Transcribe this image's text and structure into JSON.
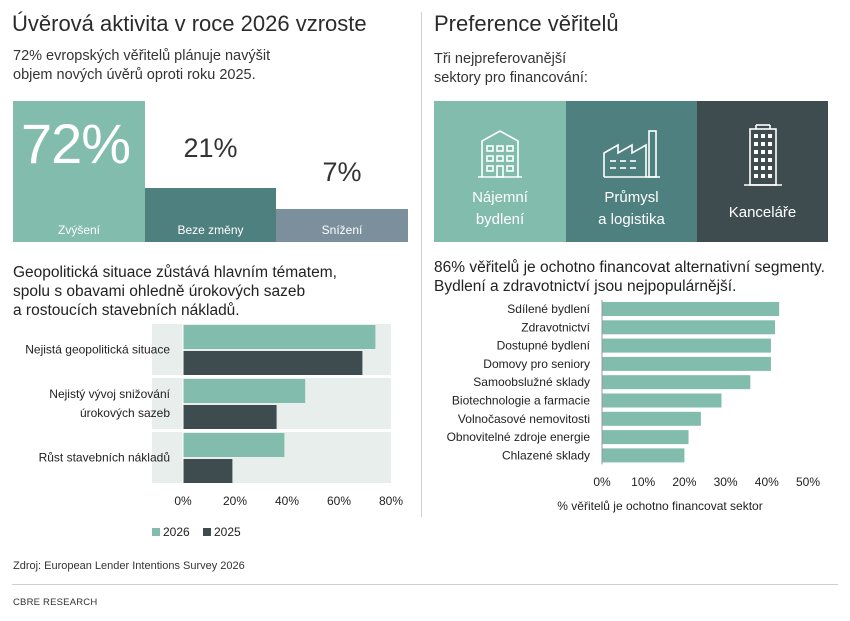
{
  "left": {
    "title": "Úvěrová aktivita v roce 2026 vzroste",
    "subtitle_line1": "72% evropských věřitelů plánuje navýšit",
    "subtitle_line2": "objem nových úvěrů oproti roku 2025.",
    "blocks": [
      {
        "value": "72%",
        "label": "Zvýšení",
        "color": "#82bcac"
      },
      {
        "value": "21%",
        "label": "Beze změny",
        "color": "#4f8080"
      },
      {
        "value": "7%",
        "label": "Snížení",
        "color": "#7c8f9c"
      }
    ],
    "section2_line1": "Geopolitická situace zůstává hlavním tématem,",
    "section2_line2": "spolu s obavami ohledně úrokových sazeb",
    "section2_line3": "a rostoucích stavebních nákladů."
  },
  "right": {
    "title": "Preference věřitelů",
    "subtitle_line1": "Tři nejpreferovanější",
    "subtitle_line2": "sektory pro financování:",
    "tiles": [
      {
        "line1": "Nájemní",
        "line2": "bydlení",
        "icon": "apartment-building-icon",
        "color": "#82bcac"
      },
      {
        "line1": "Průmysl",
        "line2": "a logistika",
        "icon": "factory-icon",
        "color": "#4f8080"
      },
      {
        "line1": "Kanceláře",
        "line2": "",
        "icon": "office-tower-icon",
        "color": "#3f4c4f"
      }
    ],
    "section2_line1": "86% věřitelů je ochotno financovat alternativní segmenty.",
    "section2_line2": "Bydlení a zdravotnictví jsou nejpopulárnější."
  },
  "footer": {
    "source": "Zdroj: European Lender Intentions Survey 2026",
    "brand": "CBRE RESEARCH"
  },
  "chart_data": [
    {
      "type": "bar",
      "orientation": "horizontal",
      "categories": [
        [
          "Nejistá geopolitická situace"
        ],
        [
          "Nejistý vývoj snižování",
          "úrokových sazeb"
        ],
        [
          "Růst stavebních nákladů"
        ]
      ],
      "series": [
        {
          "name": "2026",
          "values": [
            74,
            47,
            39
          ],
          "color": "#82bcac"
        },
        {
          "name": "2025",
          "values": [
            69,
            36,
            19
          ],
          "color": "#3f4c4f"
        }
      ],
      "xlim": [
        0,
        80
      ],
      "xticks": [
        0,
        20,
        40,
        60,
        80
      ],
      "tick_suffix": "%",
      "legend": "bottom",
      "grid": false
    },
    {
      "type": "bar",
      "orientation": "horizontal",
      "categories": [
        "Sdílené bydlení",
        "Zdravotnictví",
        "Dostupné bydlení",
        "Domovy pro seniory",
        "Samoobslužné sklady",
        "Biotechnologie a farmacie",
        "Volnočasové nemovitosti",
        "Obnovitelné zdroje energie",
        "Chlazené sklady"
      ],
      "values": [
        43,
        42,
        41,
        41,
        36,
        29,
        24,
        21,
        20
      ],
      "color": "#82bcac",
      "xlim": [
        0,
        50
      ],
      "xticks": [
        0,
        10,
        20,
        30,
        40,
        50
      ],
      "tick_suffix": "%",
      "xlabel": "% věřitelů je ochotno financovat sektor",
      "grid": false
    }
  ]
}
